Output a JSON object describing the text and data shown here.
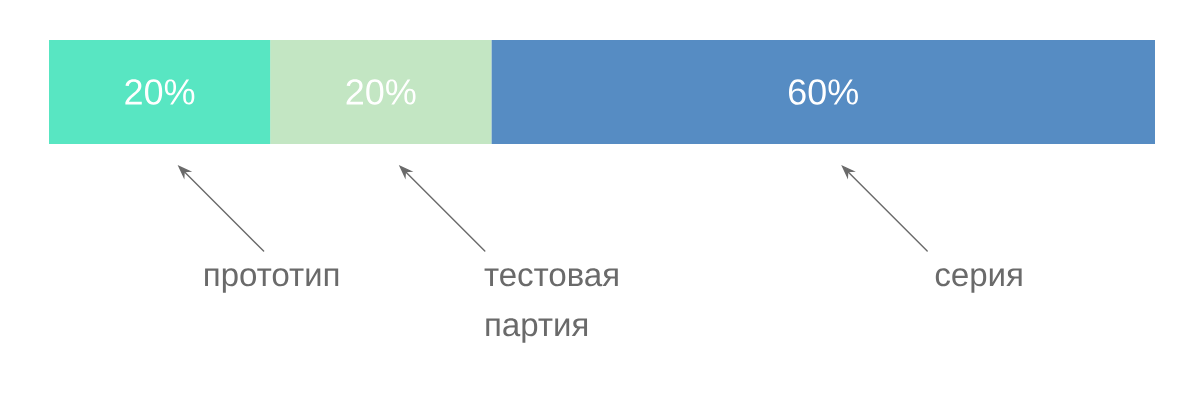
{
  "chart_data": {
    "type": "bar",
    "orientation": "horizontal",
    "stacked": true,
    "categories": [
      null
    ],
    "series": [
      {
        "color": "#58e6c2",
        "values": [
          20
        ],
        "value_labels": [
          "20%"
        ]
      },
      {
        "color": "#c3e6c3",
        "values": [
          20
        ],
        "value_labels": [
          "20%"
        ]
      },
      {
        "color": "#568cc3",
        "values": [
          60
        ],
        "value_labels": [
          "60%"
        ]
      }
    ],
    "annotations": [
      "прототип",
      "тестовая партия",
      "серия"
    ]
  }
}
